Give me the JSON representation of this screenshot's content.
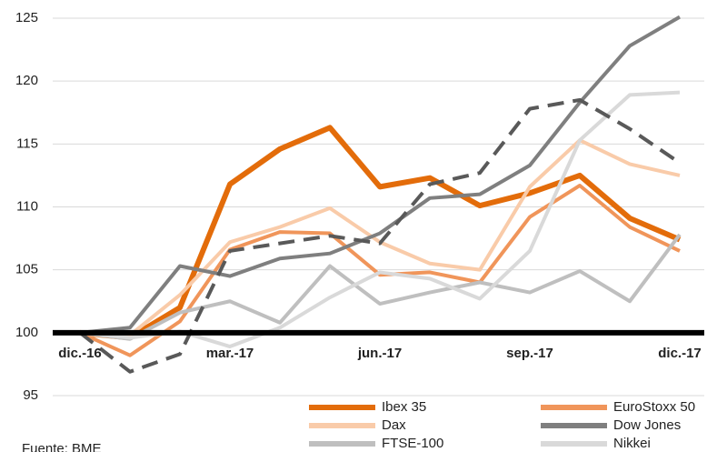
{
  "chart_data": {
    "type": "line",
    "categories": [
      "dic.-16",
      null,
      null,
      "mar.-17",
      null,
      null,
      "jun.-17",
      null,
      null,
      "sep.-17",
      null,
      null,
      "dic.-17"
    ],
    "series": [
      {
        "name": "Ibex 35",
        "color": "#e36c0a",
        "width": 6,
        "values": [
          100,
          99.6,
          102,
          111.8,
          114.6,
          116.3,
          111.6,
          112.3,
          110.1,
          111.1,
          112.5,
          109.1,
          107.4
        ]
      },
      {
        "name": "EuroStoxx 50",
        "color": "#f0955a",
        "width": 4,
        "values": [
          100,
          98.2,
          100.9,
          106.6,
          108.0,
          107.9,
          104.6,
          104.8,
          104.0,
          109.2,
          111.7,
          108.4,
          106.5
        ]
      },
      {
        "name": "Dax",
        "color": "#f9cba9",
        "width": 4,
        "values": [
          100,
          99.8,
          103,
          107.2,
          108.4,
          109.9,
          107.2,
          105.5,
          105.0,
          111.6,
          115.3,
          113.4,
          112.5
        ]
      },
      {
        "name": "Dow Jones",
        "color": "#7f7f7f",
        "width": 4,
        "values": [
          100,
          100.4,
          105.3,
          104.5,
          105.9,
          106.3,
          107.9,
          110.7,
          111.0,
          113.3,
          118.3,
          122.8,
          125.1
        ]
      },
      {
        "name": "FTSE-100",
        "color": "#bfbfbf",
        "width": 4,
        "values": [
          100,
          99.5,
          101.6,
          102.5,
          100.8,
          105.3,
          102.3,
          103.2,
          104.0,
          103.2,
          104.9,
          102.5,
          107.8
        ]
      },
      {
        "name": "Nikkei",
        "color": "#d9d9d9",
        "width": 4,
        "values": [
          100,
          99.6,
          100.1,
          98.9,
          100.4,
          102.8,
          104.8,
          104.3,
          102.7,
          106.5,
          115.3,
          118.9,
          119.1
        ]
      },
      {
        "color": "#595959",
        "width": 4,
        "dashed": true,
        "values": [
          100,
          96.9,
          98.3,
          106.5,
          107.1,
          107.7,
          107.1,
          111.8,
          112.7,
          117.8,
          118.5,
          116.2,
          113.5
        ]
      }
    ],
    "ylim": [
      95,
      125
    ],
    "yticks": [
      95,
      100,
      105,
      110,
      115,
      120,
      125
    ],
    "grid": true,
    "xaxis_cross": 100,
    "source": "Fuente: BME"
  }
}
